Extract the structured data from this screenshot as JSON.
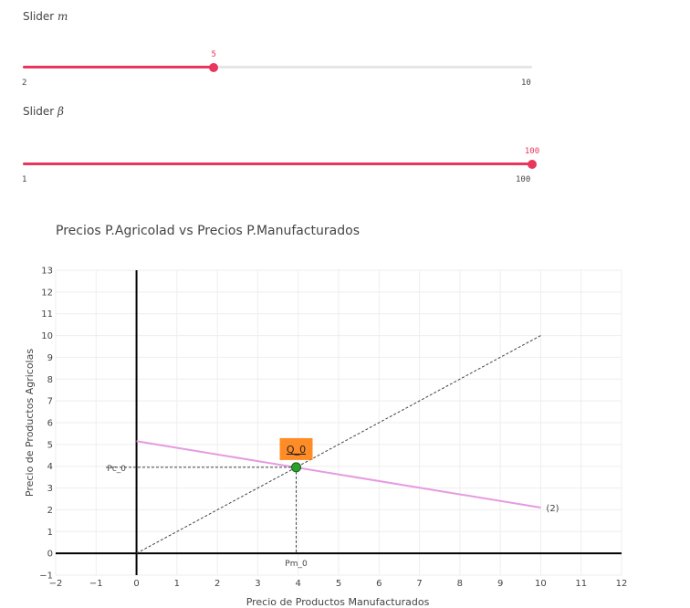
{
  "sliders": {
    "m": {
      "label": "Slider",
      "symbol": "m",
      "value": 5,
      "value_label": "5",
      "min": 2,
      "max": 10,
      "min_label": "2",
      "max_label": "10"
    },
    "beta": {
      "label": "Slider",
      "symbol": "β",
      "value": 100,
      "value_label": "100",
      "min": 1,
      "max": 100,
      "min_label": "1",
      "max_label": "100"
    }
  },
  "colors": {
    "slider_accent": "#e8365d",
    "slider_track": "#e6e6e6",
    "demand_line": "#e59be0",
    "equilibrium_point": "#2ca02c",
    "annotation_box": "#ff7f0e",
    "guide_line": "#444444",
    "grid": "#eeeeee"
  },
  "chart_data": {
    "type": "line",
    "title": "Precios P.Agricolad vs Precios P.Manufacturados",
    "xlabel": "Precio de Productos Manufacturados",
    "ylabel": "Precio de Productos Agricolas",
    "xlim": [
      -2,
      12
    ],
    "ylim": [
      -1,
      13
    ],
    "xticks": [
      -2,
      -1,
      0,
      1,
      2,
      3,
      4,
      5,
      6,
      7,
      8,
      9,
      10,
      11,
      12
    ],
    "yticks": [
      -1,
      0,
      1,
      2,
      3,
      4,
      5,
      6,
      7,
      8,
      9,
      10,
      11,
      12,
      13
    ],
    "grid": true,
    "series": [
      {
        "style": "dotted",
        "x": [
          0,
          10
        ],
        "y": [
          0,
          10
        ]
      },
      {
        "style": "solid",
        "x": [
          0,
          10
        ],
        "y": [
          5.15,
          2.1
        ],
        "end_label": "(2)"
      }
    ],
    "equilibrium": {
      "x": 3.95,
      "y": 3.95,
      "label": "Q_0",
      "x_label": "Pm_0",
      "y_label": "Pc_0"
    }
  }
}
